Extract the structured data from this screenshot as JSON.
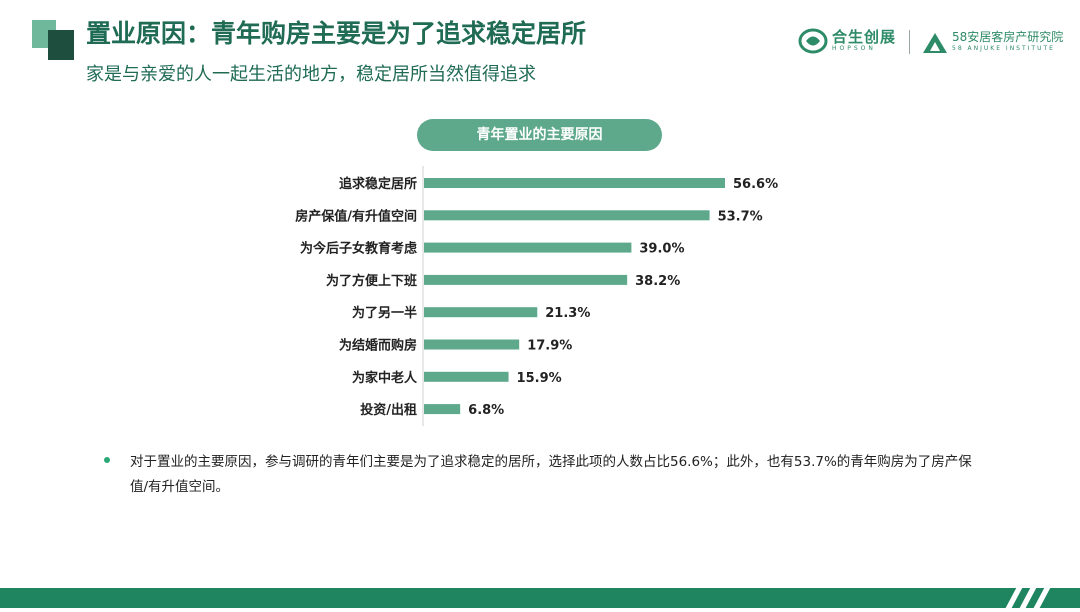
{
  "header": {
    "title": "置业原因：青年购房主要是为了追求稳定居所",
    "subtitle": "家是与亲爱的人一起生活的地方，稳定居所当然值得追求",
    "logo1_text": "合生创展",
    "logo1_sub": "HOPSON",
    "logo2_text": "58安居客房产研究院",
    "logo2_sub": "58 ANJUKE INSTITUTE"
  },
  "chart_data": {
    "type": "bar",
    "orientation": "horizontal",
    "title": "青年置业的主要原因",
    "categories": [
      "追求稳定居所",
      "房产保值/有升值空间",
      "为今后子女教育考虑",
      "为了方便上下班",
      "为了另一半",
      "为结婚而购房",
      "为家中老人",
      "投资/出租"
    ],
    "values": [
      56.6,
      53.7,
      39.0,
      38.2,
      21.3,
      17.9,
      15.9,
      6.8
    ],
    "value_labels": [
      "56.6%",
      "53.7%",
      "39.0%",
      "38.2%",
      "21.3%",
      "17.9%",
      "15.9%",
      "6.8%"
    ],
    "xlim": [
      0,
      56.6
    ],
    "color": "#5ea98c",
    "grid": false
  },
  "note": {
    "text": "对于置业的主要原因，参与调研的青年们主要是为了追求稳定的居所，选择此项的人数占比56.6%；此外，也有53.7%的青年购房为了房产保值/有升值空间。"
  },
  "colors": {
    "brand_dark": "#1f6b54",
    "bar": "#5ea98c",
    "footer": "#1e8560"
  }
}
